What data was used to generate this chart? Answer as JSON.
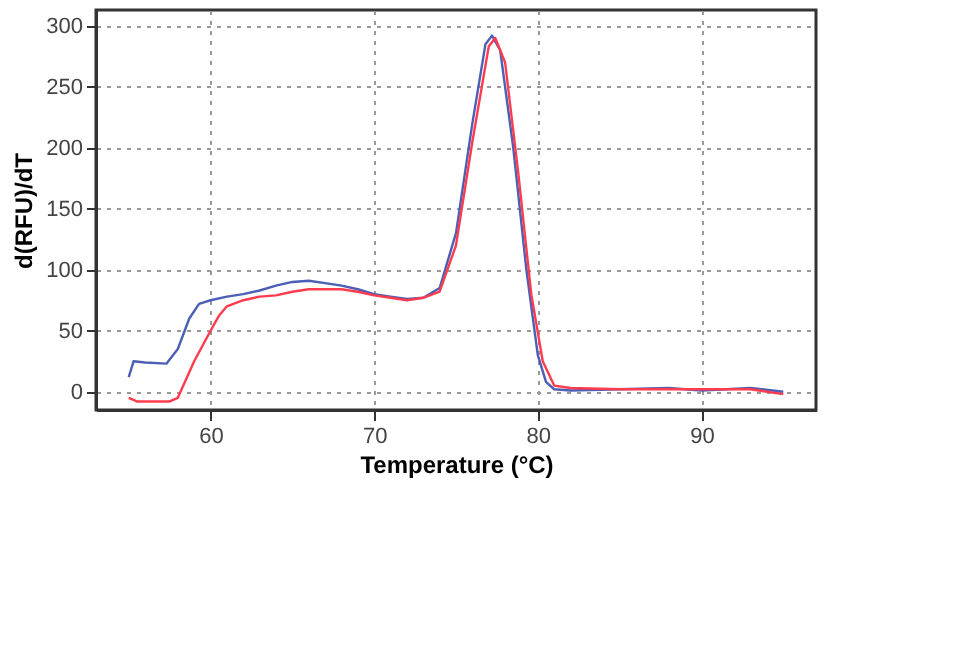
{
  "chart_data": {
    "type": "line",
    "xlabel": "Temperature (°C)",
    "ylabel": "d(RFU)/dT",
    "xlim": [
      53,
      97
    ],
    "xticks": [
      60,
      70,
      80,
      90
    ],
    "ylim": [
      -15,
      313
    ],
    "yticks": [
      0,
      50,
      100,
      150,
      200,
      250,
      300
    ],
    "grid": true,
    "marker": "none",
    "line_style": "solid",
    "series": [
      {
        "color": "#4a5fb5",
        "x": [
          55,
          55.3,
          56,
          57.3,
          58,
          58.7,
          59.3,
          60,
          61,
          62,
          63,
          64,
          65,
          66,
          67,
          68,
          69,
          70,
          71,
          72,
          73,
          74,
          75,
          76,
          76.8,
          77.2,
          77.7,
          78.5,
          79.3,
          80,
          80.5,
          81,
          82,
          85,
          88,
          90,
          93,
          95
        ],
        "values": [
          12,
          25,
          24,
          23,
          35,
          60,
          72,
          75,
          78,
          80,
          83,
          87,
          90,
          91,
          89,
          87,
          84,
          80,
          78,
          76,
          77,
          85,
          130,
          220,
          285,
          292,
          280,
          200,
          100,
          30,
          8,
          2,
          1,
          2,
          3,
          1,
          3,
          0
        ]
      },
      {
        "color": "#ff3b4e",
        "x": [
          55,
          55.5,
          57.5,
          58,
          59,
          60,
          60.5,
          61,
          62,
          63,
          64,
          65,
          66,
          67,
          68,
          69,
          70,
          71,
          72,
          73,
          74,
          75,
          76,
          77,
          77.4,
          78,
          78.8,
          79.6,
          80.3,
          81,
          82,
          85,
          88,
          90,
          93,
          95
        ],
        "values": [
          -5,
          -8,
          -8,
          -5,
          25,
          50,
          62,
          70,
          75,
          78,
          79,
          82,
          84,
          84,
          84,
          82,
          79,
          77,
          75,
          77,
          82,
          120,
          205,
          283,
          290,
          270,
          180,
          80,
          25,
          5,
          3,
          2,
          2,
          2,
          2,
          -2
        ]
      }
    ]
  }
}
